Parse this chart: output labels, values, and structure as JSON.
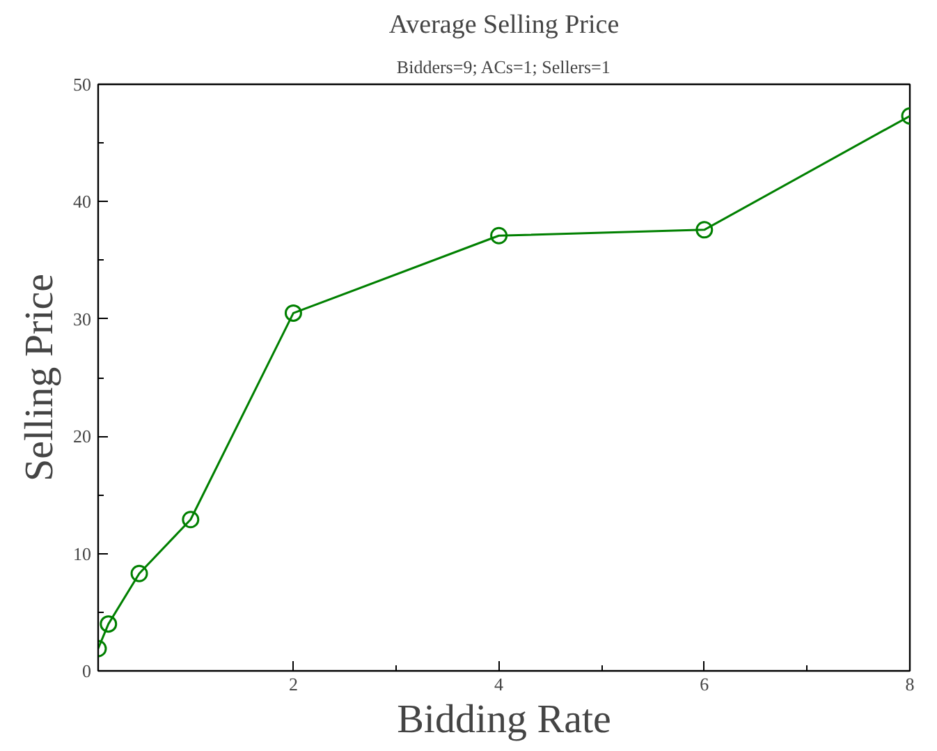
{
  "chart_data": {
    "type": "line",
    "title": "Average Selling Price",
    "subtitle": "Bidders=9; ACs=1; Sellers=1",
    "xlabel": "Bidding Rate",
    "ylabel": "Selling Price",
    "x": [
      0.1,
      0.2,
      0.5,
      1,
      2,
      4,
      6,
      8
    ],
    "series": [
      {
        "color": "#008000",
        "values": [
          1.9,
          4.0,
          8.3,
          12.9,
          30.5,
          37.1,
          37.6,
          47.3
        ]
      }
    ],
    "xlim": [
      0.1,
      8
    ],
    "ylim": [
      0,
      50
    ],
    "xticks": [
      2,
      4,
      6,
      8
    ],
    "yticks": [
      0,
      10,
      20,
      30,
      40,
      50
    ],
    "grid": false,
    "marker": "circle",
    "line_style": "solid"
  }
}
